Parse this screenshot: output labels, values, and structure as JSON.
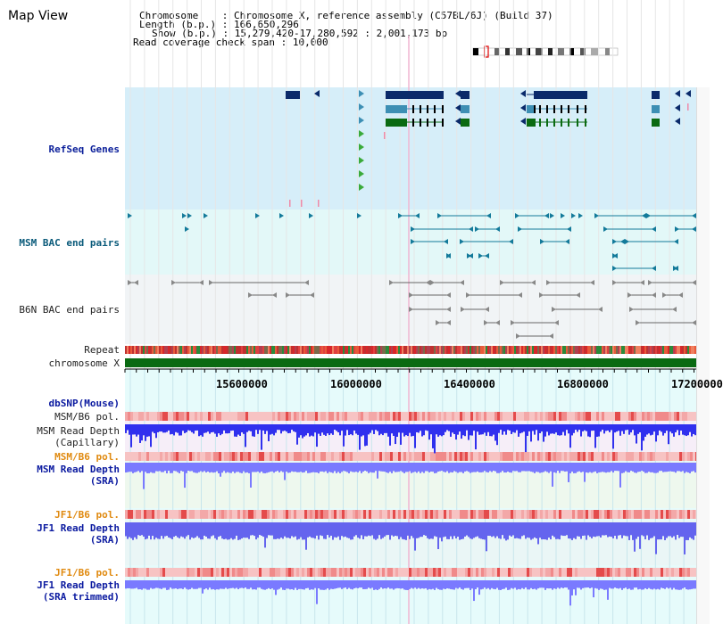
{
  "app": {
    "title": "Map View"
  },
  "header": {
    "chromosome_label": "Chromosome",
    "chromosome_value": "Chromosome X, reference assembly (C57BL/6J) (Build 37)",
    "length_label": "Length (b.p.)",
    "length_value": "166,650,296",
    "show_label": "Show (b.p.)",
    "show_value": "15,279,420-17,280,592 : 2,001,173 bp",
    "coverage_label": "Read coverage check span",
    "coverage_value": "10,000"
  },
  "tracks": {
    "refseq": "RefSeq Genes",
    "msm_bac": "MSM BAC end pairs",
    "b6n_bac": "B6N BAC end pairs",
    "repeat": "Repeat",
    "chromosome": "chromosome X",
    "dbsnp": "dbSNP(Mouse)",
    "msm_b6_pol_1": "MSM/B6 pol.",
    "msm_depth_cap_1": "MSM Read Depth",
    "msm_depth_cap_2": "(Capillary)",
    "msm_b6_pol_2": "MSM/B6 pol.",
    "msm_depth_sra_1": "MSM Read Depth",
    "msm_depth_sra_2": "(SRA)",
    "jf1_b6_pol_1": "JF1/B6 pol.",
    "jf1_depth_sra_1": "JF1 Read Depth",
    "jf1_depth_sra_2": "(SRA)",
    "jf1_b6_pol_2": "JF1/B6 pol.",
    "jf1_depth_trim_1": "JF1 Read Depth",
    "jf1_depth_trim_2": "(SRA trimmed)"
  },
  "scale": {
    "ticks": [
      "15600000",
      "16000000",
      "16400000",
      "16800000",
      "17200000"
    ]
  },
  "colors": {
    "refseq_bg": "#d6eef9",
    "msm_bg": "#e3f8f8",
    "b6n_bg": "#f1f4f6",
    "lower_bg": "#e6fbfb",
    "depth_blue": "#5a5aff",
    "pol_red": "#f4a6a6",
    "gene_navy": "#0a2a6a",
    "gene_teal": "#3d8fb4",
    "gene_green": "#0a6a12",
    "chromosome_green": "#0a6a12"
  }
}
